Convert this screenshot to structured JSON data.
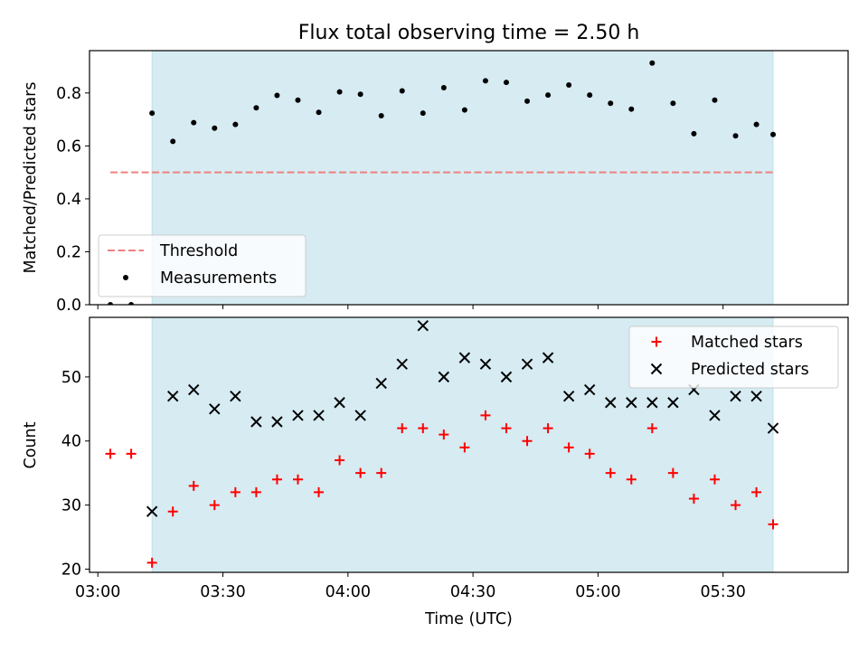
{
  "chart_data": [
    {
      "type": "scatter",
      "title": "Flux total observing time = 2.50 h",
      "ylabel": "Matched/Predicted stars",
      "xlim": [
        "02:58",
        "06:00"
      ],
      "ylim": [
        0,
        0.96
      ],
      "yticks": [
        0.0,
        0.2,
        0.4,
        0.6,
        0.8
      ],
      "ytick_labels": [
        "0.0",
        "0.2",
        "0.4",
        "0.6",
        "0.8"
      ],
      "shaded_interval": [
        "03:13",
        "05:42"
      ],
      "shade_color": "#add8e6",
      "legend": "lower-left",
      "threshold": {
        "name": "Threshold",
        "value": 0.5,
        "x_range": [
          "03:03",
          "05:42"
        ],
        "color": "#f08080",
        "style": "dashed"
      },
      "series": [
        {
          "name": "Measurements",
          "marker": "dot",
          "color": "#000000",
          "points": [
            [
              "03:03",
              0.0
            ],
            [
              "03:08",
              0.0
            ],
            [
              "03:13",
              0.724
            ],
            [
              "03:18",
              0.617
            ],
            [
              "03:23",
              0.688
            ],
            [
              "03:28",
              0.667
            ],
            [
              "03:33",
              0.681
            ],
            [
              "03:38",
              0.744
            ],
            [
              "03:43",
              0.791
            ],
            [
              "03:48",
              0.773
            ],
            [
              "03:53",
              0.727
            ],
            [
              "03:58",
              0.804
            ],
            [
              "04:03",
              0.795
            ],
            [
              "04:08",
              0.714
            ],
            [
              "04:13",
              0.808
            ],
            [
              "04:18",
              0.724
            ],
            [
              "04:23",
              0.82
            ],
            [
              "04:28",
              0.736
            ],
            [
              "04:33",
              0.846
            ],
            [
              "04:38",
              0.84
            ],
            [
              "04:43",
              0.769
            ],
            [
              "04:48",
              0.792
            ],
            [
              "04:53",
              0.83
            ],
            [
              "04:58",
              0.792
            ],
            [
              "05:03",
              0.761
            ],
            [
              "05:08",
              0.739
            ],
            [
              "05:13",
              0.913
            ],
            [
              "05:18",
              0.761
            ],
            [
              "05:23",
              0.646
            ],
            [
              "05:28",
              0.773
            ],
            [
              "05:33",
              0.638
            ],
            [
              "05:38",
              0.681
            ],
            [
              "05:42",
              0.643
            ]
          ]
        }
      ]
    },
    {
      "type": "scatter",
      "xlabel": "Time (UTC)",
      "ylabel": "Count",
      "xlim": [
        "02:58",
        "06:00"
      ],
      "ylim": [
        19.5,
        59.3
      ],
      "xticks": [
        "03:00",
        "03:30",
        "04:00",
        "04:30",
        "05:00",
        "05:30"
      ],
      "yticks": [
        20,
        30,
        40,
        50
      ],
      "ytick_labels": [
        "20",
        "30",
        "40",
        "50"
      ],
      "shaded_interval": [
        "03:13",
        "05:42"
      ],
      "shade_color": "#add8e6",
      "legend": "top-right",
      "series": [
        {
          "name": "Matched stars",
          "marker": "plus",
          "color": "#ff0000",
          "points": [
            [
              "03:03",
              38
            ],
            [
              "03:08",
              38
            ],
            [
              "03:13",
              21
            ],
            [
              "03:18",
              29
            ],
            [
              "03:23",
              33
            ],
            [
              "03:28",
              30
            ],
            [
              "03:33",
              32
            ],
            [
              "03:38",
              32
            ],
            [
              "03:43",
              34
            ],
            [
              "03:48",
              34
            ],
            [
              "03:53",
              32
            ],
            [
              "03:58",
              37
            ],
            [
              "04:03",
              35
            ],
            [
              "04:08",
              35
            ],
            [
              "04:13",
              42
            ],
            [
              "04:18",
              42
            ],
            [
              "04:23",
              41
            ],
            [
              "04:28",
              39
            ],
            [
              "04:33",
              44
            ],
            [
              "04:38",
              42
            ],
            [
              "04:43",
              40
            ],
            [
              "04:48",
              42
            ],
            [
              "04:53",
              39
            ],
            [
              "04:58",
              38
            ],
            [
              "05:03",
              35
            ],
            [
              "05:08",
              34
            ],
            [
              "05:13",
              42
            ],
            [
              "05:18",
              35
            ],
            [
              "05:23",
              31
            ],
            [
              "05:28",
              34
            ],
            [
              "05:33",
              30
            ],
            [
              "05:38",
              32
            ],
            [
              "05:42",
              27
            ]
          ]
        },
        {
          "name": "Predicted stars",
          "marker": "x",
          "color": "#000000",
          "points": [
            [
              "03:13",
              29
            ],
            [
              "03:18",
              47
            ],
            [
              "03:23",
              48
            ],
            [
              "03:28",
              45
            ],
            [
              "03:33",
              47
            ],
            [
              "03:38",
              43
            ],
            [
              "03:43",
              43
            ],
            [
              "03:48",
              44
            ],
            [
              "03:53",
              44
            ],
            [
              "03:58",
              46
            ],
            [
              "04:03",
              44
            ],
            [
              "04:08",
              49
            ],
            [
              "04:13",
              52
            ],
            [
              "04:18",
              58
            ],
            [
              "04:23",
              50
            ],
            [
              "04:28",
              53
            ],
            [
              "04:33",
              52
            ],
            [
              "04:38",
              50
            ],
            [
              "04:43",
              52
            ],
            [
              "04:48",
              53
            ],
            [
              "04:53",
              47
            ],
            [
              "04:58",
              48
            ],
            [
              "05:03",
              46
            ],
            [
              "05:08",
              46
            ],
            [
              "05:13",
              46
            ],
            [
              "05:18",
              46
            ],
            [
              "05:23",
              48
            ],
            [
              "05:28",
              44
            ],
            [
              "05:33",
              47
            ],
            [
              "05:38",
              47
            ],
            [
              "05:42",
              42
            ]
          ]
        }
      ]
    }
  ]
}
